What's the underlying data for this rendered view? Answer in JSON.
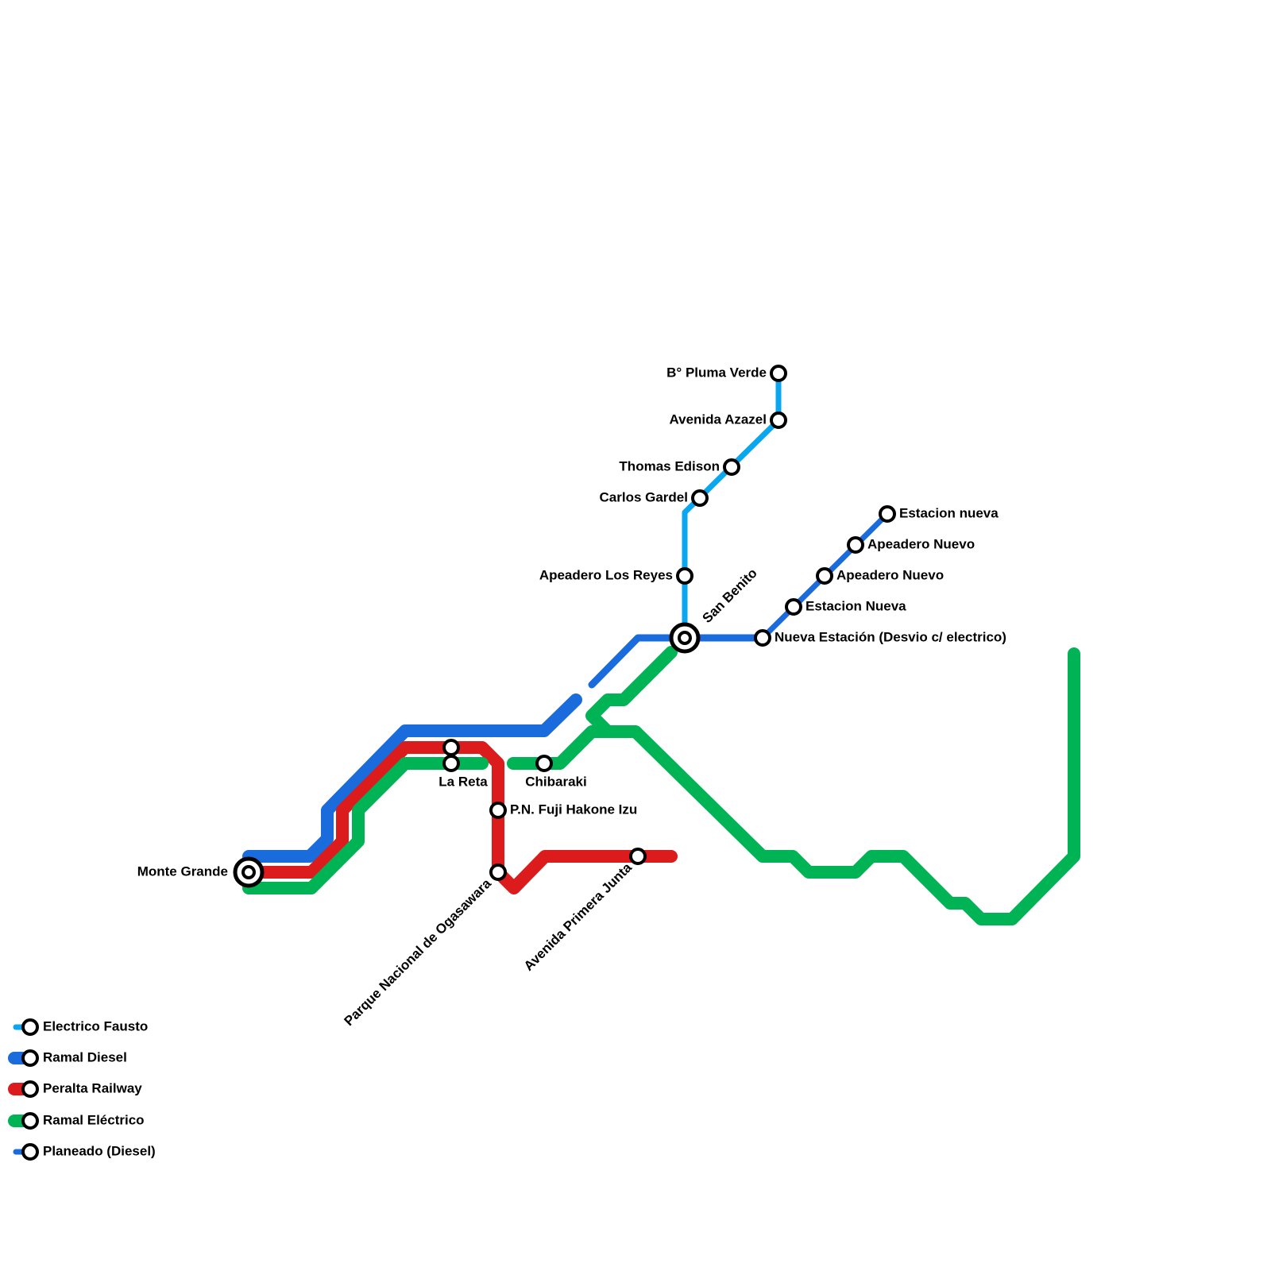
{
  "stations": [
    {
      "label": "B° Pluma Verde"
    },
    {
      "label": "Avenida Azazel"
    },
    {
      "label": "Thomas Edison"
    },
    {
      "label": "Carlos Gardel"
    },
    {
      "label": "Apeadero Los Reyes"
    },
    {
      "label": "San Benito"
    },
    {
      "label": "Nueva Estación (Desvio c/ electrico)"
    },
    {
      "label": "Estacion Nueva"
    },
    {
      "label": "Apeadero Nuevo"
    },
    {
      "label": "Apeadero Nuevo"
    },
    {
      "label": "Estacion nueva"
    },
    {
      "label": "Monte Grande"
    },
    {
      "label": "La Reta"
    },
    {
      "label": "Chibaraki"
    },
    {
      "label": "P.N. Fuji Hakone Izu"
    },
    {
      "label": "Parque Nacional de Ogasawara"
    },
    {
      "label": "Avenida Primera Junta"
    }
  ],
  "legend": [
    {
      "label": "Electrico Fausto"
    },
    {
      "label": "Ramal Diesel"
    },
    {
      "label": "Peralta Railway"
    },
    {
      "label": "Ramal Eléctrico"
    },
    {
      "label": "Planeado (Diesel)"
    }
  ]
}
